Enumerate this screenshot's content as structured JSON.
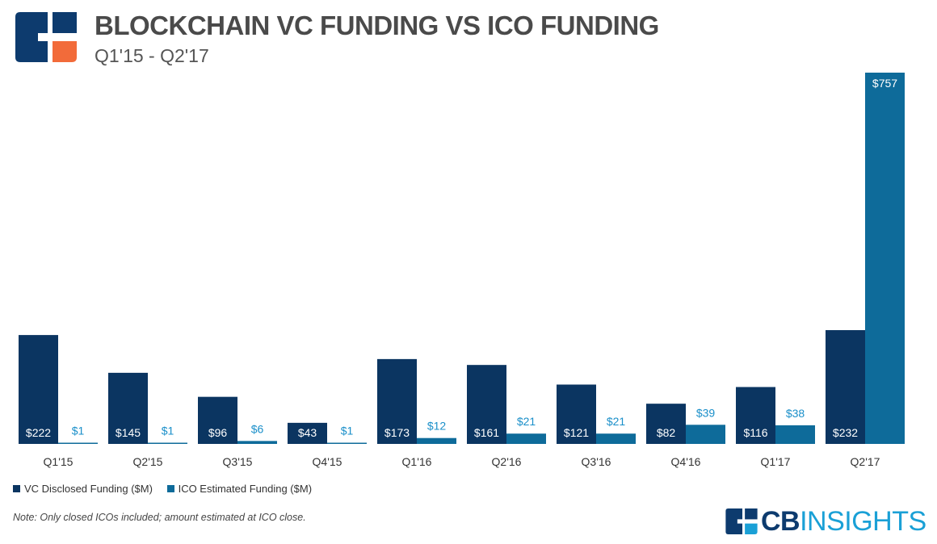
{
  "title": "BLOCKCHAIN VC FUNDING VS ICO FUNDING",
  "subtitle": "Q1'15 - Q2'17",
  "note": "Note: Only closed ICOs included; amount estimated at ICO close.",
  "brand": {
    "bold": "CB",
    "rest": "INSIGHTS"
  },
  "colors": {
    "vc": "#0b3561",
    "ico": "#0e6b9a",
    "ico_label": "#1a8fc9",
    "logo_orange": "#f26b3a"
  },
  "chart_data": {
    "type": "bar",
    "categories": [
      "Q1'15",
      "Q2'15",
      "Q3'15",
      "Q4'15",
      "Q1'16",
      "Q2'16",
      "Q3'16",
      "Q4'16",
      "Q1'17",
      "Q2'17"
    ],
    "series": [
      {
        "name": "VC Disclosed Funding ($M)",
        "values": [
          222,
          145,
          96,
          43,
          173,
          161,
          121,
          82,
          116,
          232
        ],
        "labels": [
          "$222",
          "$145",
          "$96",
          "$43",
          "$173",
          "$161",
          "$121",
          "$82",
          "$116",
          "$232"
        ]
      },
      {
        "name": "ICO Estimated Funding ($M)",
        "values": [
          1,
          1,
          6,
          1,
          12,
          21,
          21,
          39,
          38,
          757
        ],
        "labels": [
          "$1",
          "$1",
          "$6",
          "$1",
          "$12",
          "$21",
          "$21",
          "$39",
          "$38",
          "$757"
        ]
      }
    ],
    "ylim": [
      0,
      757
    ],
    "grid": false,
    "legend": "bottom-left"
  }
}
